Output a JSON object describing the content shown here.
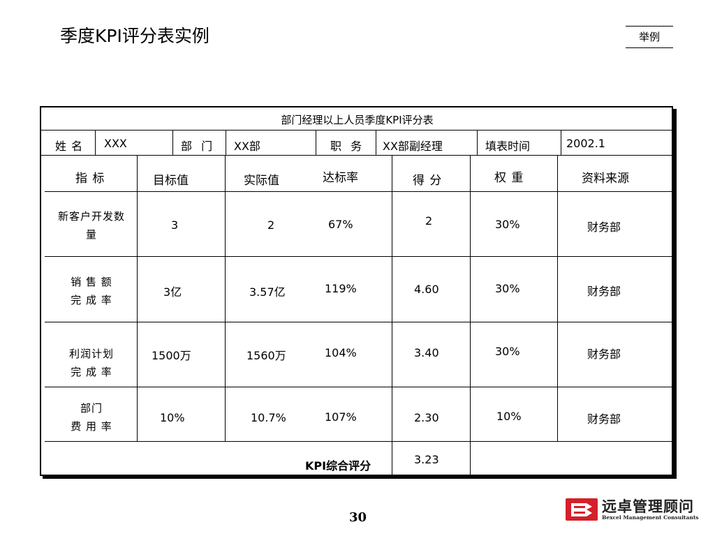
{
  "slide": {
    "title": "季度KPI评分表实例",
    "tag": "举例",
    "page_number": "30"
  },
  "table": {
    "caption": "部门经理以上人员季度KPI评分表",
    "info": {
      "name_label": "姓 名",
      "name_value": "XXX",
      "dept_label": "部 门",
      "dept_value": "XX部",
      "position_label": "职 务",
      "position_value": "XX部副经理",
      "date_label": "填表时间",
      "date_value": "2002.1"
    },
    "headers": [
      "指 标",
      "目标值",
      "实际值",
      "达标率",
      "得 分",
      "权 重",
      "资料来源"
    ],
    "rows": [
      {
        "indicator": "新客户开发数\n量",
        "target": "3",
        "actual": "2",
        "rate": "67%",
        "score": "2",
        "weight": "30%",
        "source": "财务部"
      },
      {
        "indicator": "销 售 额\n完 成 率",
        "target": "3亿",
        "actual": "3.57亿",
        "rate": "119%",
        "score": "4.60",
        "weight": "30%",
        "source": "财务部"
      },
      {
        "indicator": "利润计划\n完 成 率",
        "target": "1500万",
        "actual": "1560万",
        "rate": "104%",
        "score": "3.40",
        "weight": "30%",
        "source": "财务部"
      },
      {
        "indicator": "部门\n费 用 率",
        "target": "10%",
        "actual": "10.7%",
        "rate": "107%",
        "score": "2.30",
        "weight": "10%",
        "source": "财务部"
      }
    ],
    "total_label": "KPI综合评分",
    "total_value": "3.23"
  },
  "logo": {
    "cn_text": "远卓管理顾问",
    "en_text": "Bexcel Management Consultants",
    "color": "#d4202a"
  }
}
